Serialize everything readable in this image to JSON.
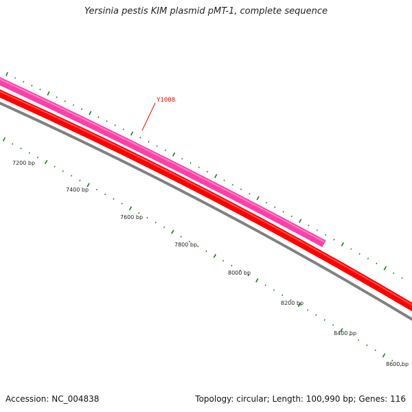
{
  "title": "Yersinia pestis KIM plasmid pMT-1, complete sequence",
  "footer": {
    "accession": "Accession: NC_004838",
    "summary": "Topology: circular; Length: 100,990 bp; Genes: 116"
  },
  "colors": {
    "backbone": "#808080",
    "cds_strand": "#ff0000",
    "gene_feature": "#ff3fa8",
    "ticks": "#1a7a1a",
    "callout": "#ff0000"
  },
  "tracks": [
    {
      "name": "gene-feature-track",
      "color": "#ff3fa8"
    },
    {
      "name": "cds-track",
      "color": "#ff0000"
    },
    {
      "name": "backbone-track",
      "color": "#808080"
    }
  ],
  "gene_labels": [
    {
      "text": "Y1008"
    }
  ],
  "scale_labels": [
    "7200 bp",
    "7400 bp",
    "7600 bp",
    "7800 bp",
    "8000 bp",
    "8200 bp",
    "8400 bp",
    "8600 bp"
  ]
}
